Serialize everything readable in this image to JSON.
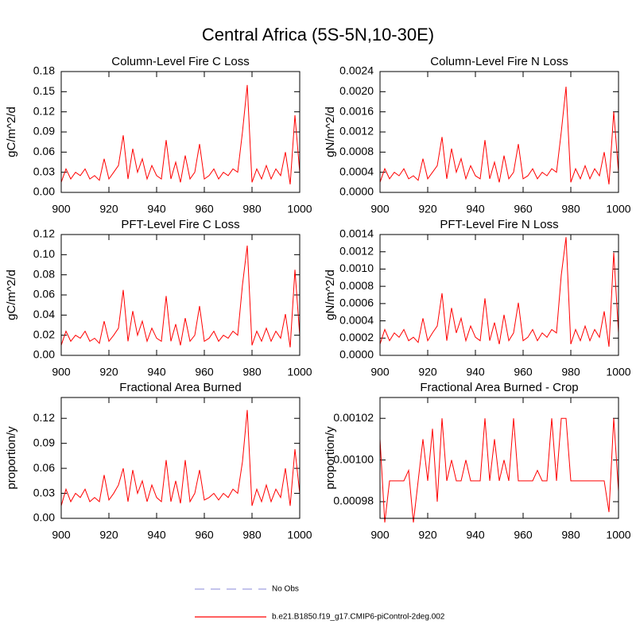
{
  "title": "Central Africa (5S-5N,10-30E)",
  "chart_data": [
    {
      "type": "line",
      "title": "Column-Level Fire C Loss",
      "ylabel": "gC/m^2/d",
      "x": [
        900,
        902,
        904,
        906,
        908,
        910,
        912,
        914,
        916,
        918,
        920,
        922,
        924,
        926,
        928,
        930,
        932,
        934,
        936,
        938,
        940,
        942,
        944,
        946,
        948,
        950,
        952,
        954,
        956,
        958,
        960,
        962,
        964,
        966,
        968,
        970,
        972,
        974,
        976,
        978,
        980,
        982,
        984,
        986,
        988,
        990,
        992,
        994,
        996,
        998,
        1000
      ],
      "series": [
        {
          "color": "#ff0000",
          "values": [
            0.015,
            0.035,
            0.02,
            0.03,
            0.025,
            0.035,
            0.02,
            0.025,
            0.018,
            0.05,
            0.02,
            0.03,
            0.04,
            0.085,
            0.02,
            0.065,
            0.03,
            0.05,
            0.02,
            0.04,
            0.025,
            0.02,
            0.078,
            0.02,
            0.045,
            0.015,
            0.055,
            0.02,
            0.03,
            0.072,
            0.02,
            0.025,
            0.035,
            0.02,
            0.03,
            0.025,
            0.035,
            0.03,
            0.09,
            0.16,
            0.015,
            0.035,
            0.02,
            0.04,
            0.02,
            0.035,
            0.025,
            0.06,
            0.012,
            0.115,
            0.03
          ]
        }
      ],
      "xlim": [
        900,
        1000
      ],
      "xticks": [
        900,
        920,
        940,
        960,
        980,
        1000
      ],
      "ylim": [
        0,
        0.18
      ],
      "yticks": [
        {
          "value": 0,
          "label": "0.00"
        },
        0.03,
        0.06,
        0.09,
        0.12,
        0.15,
        0.18
      ]
    },
    {
      "type": "line",
      "title": "Column-Level Fire N Loss",
      "ylabel": "gN/m^2/d",
      "x": [
        900,
        902,
        904,
        906,
        908,
        910,
        912,
        914,
        916,
        918,
        920,
        922,
        924,
        926,
        928,
        930,
        932,
        934,
        936,
        938,
        940,
        942,
        944,
        946,
        948,
        950,
        952,
        954,
        956,
        958,
        960,
        962,
        964,
        966,
        968,
        970,
        972,
        974,
        976,
        978,
        980,
        982,
        984,
        986,
        988,
        990,
        992,
        994,
        996,
        998,
        1000
      ],
      "series": [
        {
          "color": "#ff0000",
          "values": [
            0.0002,
            0.00047,
            0.00027,
            0.0004,
            0.00033,
            0.00047,
            0.00027,
            0.00033,
            0.00024,
            0.00067,
            0.00027,
            0.0004,
            0.00053,
            0.0011,
            0.00027,
            0.00087,
            0.0004,
            0.00067,
            0.00027,
            0.00053,
            0.00033,
            0.00027,
            0.00104,
            0.00027,
            0.0006,
            0.0002,
            0.00073,
            0.00027,
            0.0004,
            0.00096,
            0.00027,
            0.00033,
            0.00047,
            0.00027,
            0.0004,
            0.00033,
            0.00047,
            0.0004,
            0.0012,
            0.0021,
            0.0002,
            0.00047,
            0.00027,
            0.00053,
            0.00027,
            0.00047,
            0.00033,
            0.0008,
            0.00016,
            0.0016,
            0.0004
          ]
        }
      ],
      "xlim": [
        900,
        1000
      ],
      "xticks": [
        900,
        920,
        940,
        960,
        980,
        1000
      ],
      "ylim": [
        0,
        0.0024
      ],
      "yticks": [
        {
          "value": 0,
          "label": "0.0000"
        },
        0.0004,
        0.0008,
        0.0012,
        0.0016,
        {
          "value": 0.002,
          "label": "0.0020"
        },
        0.0024
      ]
    },
    {
      "type": "line",
      "title": "PFT-Level Fire C Loss",
      "ylabel": "gC/m^2/d",
      "x": [
        900,
        902,
        904,
        906,
        908,
        910,
        912,
        914,
        916,
        918,
        920,
        922,
        924,
        926,
        928,
        930,
        932,
        934,
        936,
        938,
        940,
        942,
        944,
        946,
        948,
        950,
        952,
        954,
        956,
        958,
        960,
        962,
        964,
        966,
        968,
        970,
        972,
        974,
        976,
        978,
        980,
        982,
        984,
        986,
        988,
        990,
        992,
        994,
        996,
        998,
        1000
      ],
      "series": [
        {
          "color": "#ff0000",
          "values": [
            0.01,
            0.024,
            0.014,
            0.02,
            0.017,
            0.024,
            0.014,
            0.017,
            0.012,
            0.034,
            0.014,
            0.02,
            0.027,
            0.065,
            0.014,
            0.044,
            0.02,
            0.034,
            0.014,
            0.027,
            0.017,
            0.014,
            0.059,
            0.014,
            0.031,
            0.01,
            0.037,
            0.014,
            0.02,
            0.049,
            0.014,
            0.017,
            0.024,
            0.014,
            0.02,
            0.017,
            0.024,
            0.02,
            0.07,
            0.109,
            0.01,
            0.024,
            0.014,
            0.027,
            0.014,
            0.024,
            0.017,
            0.041,
            0.008,
            0.085,
            0.02
          ]
        }
      ],
      "xlim": [
        900,
        1000
      ],
      "xticks": [
        900,
        920,
        940,
        960,
        980,
        1000
      ],
      "ylim": [
        0,
        0.12
      ],
      "yticks": [
        {
          "value": 0,
          "label": "0.00"
        },
        0.02,
        0.04,
        0.06,
        0.08,
        {
          "value": 0.1,
          "label": "0.10"
        },
        0.12
      ]
    },
    {
      "type": "line",
      "title": "PFT-Level Fire N Loss",
      "ylabel": "gN/m^2/d",
      "x": [
        900,
        902,
        904,
        906,
        908,
        910,
        912,
        914,
        916,
        918,
        920,
        922,
        924,
        926,
        928,
        930,
        932,
        934,
        936,
        938,
        940,
        942,
        944,
        946,
        948,
        950,
        952,
        954,
        956,
        958,
        960,
        962,
        964,
        966,
        968,
        970,
        972,
        974,
        976,
        978,
        980,
        982,
        984,
        986,
        988,
        990,
        992,
        994,
        996,
        998,
        1000
      ],
      "series": [
        {
          "color": "#ff0000",
          "values": [
            0.00013,
            0.0003,
            0.00017,
            0.00026,
            0.00021,
            0.0003,
            0.00017,
            0.00021,
            0.00015,
            0.00043,
            0.00017,
            0.00026,
            0.00034,
            0.00072,
            0.00017,
            0.00055,
            0.00026,
            0.00043,
            0.00017,
            0.00034,
            0.00021,
            0.00017,
            0.00066,
            0.00017,
            0.00038,
            0.00013,
            0.00047,
            0.00017,
            0.00026,
            0.00061,
            0.00017,
            0.00021,
            0.0003,
            0.00017,
            0.00026,
            0.00021,
            0.0003,
            0.00026,
            0.00093,
            0.00137,
            0.00013,
            0.0003,
            0.00017,
            0.00034,
            0.00017,
            0.0003,
            0.00021,
            0.00051,
            0.0001,
            0.00119,
            0.00026
          ]
        }
      ],
      "xlim": [
        900,
        1000
      ],
      "xticks": [
        900,
        920,
        940,
        960,
        980,
        1000
      ],
      "ylim": [
        0,
        0.0014
      ],
      "yticks": [
        {
          "value": 0,
          "label": "0.0000"
        },
        0.0002,
        0.0004,
        0.0006,
        0.0008,
        {
          "value": 0.001,
          "label": "0.0010"
        },
        0.0012,
        0.0014
      ]
    },
    {
      "type": "line",
      "title": "Fractional Area Burned",
      "ylabel": "proportion/y",
      "x": [
        900,
        902,
        904,
        906,
        908,
        910,
        912,
        914,
        916,
        918,
        920,
        922,
        924,
        926,
        928,
        930,
        932,
        934,
        936,
        938,
        940,
        942,
        944,
        946,
        948,
        950,
        952,
        954,
        956,
        958,
        960,
        962,
        964,
        966,
        968,
        970,
        972,
        974,
        976,
        978,
        980,
        982,
        984,
        986,
        988,
        990,
        992,
        994,
        996,
        998,
        1000
      ],
      "series": [
        {
          "color": "#ff0000",
          "values": [
            0.015,
            0.035,
            0.02,
            0.03,
            0.025,
            0.035,
            0.02,
            0.025,
            0.02,
            0.052,
            0.022,
            0.03,
            0.04,
            0.06,
            0.02,
            0.058,
            0.03,
            0.045,
            0.02,
            0.04,
            0.025,
            0.02,
            0.07,
            0.02,
            0.045,
            0.018,
            0.07,
            0.02,
            0.03,
            0.058,
            0.022,
            0.025,
            0.03,
            0.022,
            0.03,
            0.025,
            0.035,
            0.03,
            0.068,
            0.13,
            0.015,
            0.035,
            0.02,
            0.04,
            0.02,
            0.035,
            0.025,
            0.06,
            0.015,
            0.083,
            0.03
          ]
        }
      ],
      "xlim": [
        900,
        1000
      ],
      "xticks": [
        900,
        920,
        940,
        960,
        980,
        1000
      ],
      "ylim": [
        0,
        0.145
      ],
      "yticks": [
        {
          "value": 0,
          "label": "0.00"
        },
        0.03,
        0.06,
        0.09,
        0.12
      ]
    },
    {
      "type": "line",
      "title": "Fractional Area Burned - Crop",
      "ylabel": "proportion/y",
      "x": [
        900,
        902,
        904,
        906,
        908,
        910,
        912,
        914,
        916,
        918,
        920,
        922,
        924,
        926,
        928,
        930,
        932,
        934,
        936,
        938,
        940,
        942,
        944,
        946,
        948,
        950,
        952,
        954,
        956,
        958,
        960,
        962,
        964,
        966,
        968,
        970,
        972,
        974,
        976,
        978,
        980,
        982,
        984,
        986,
        988,
        990,
        992,
        994,
        996,
        998,
        1000
      ],
      "series": [
        {
          "color": "#ff0000",
          "values": [
            0.00101,
            0.00097,
            0.00099,
            0.00099,
            0.00099,
            0.00099,
            0.000995,
            0.00097,
            0.00099,
            0.00101,
            0.00099,
            0.001015,
            0.00098,
            0.00102,
            0.00099,
            0.001,
            0.00099,
            0.00099,
            0.001,
            0.00099,
            0.00099,
            0.00099,
            0.00102,
            0.00099,
            0.00101,
            0.00099,
            0.001,
            0.00099,
            0.00102,
            0.00099,
            0.00099,
            0.00099,
            0.00099,
            0.000995,
            0.00099,
            0.00099,
            0.00102,
            0.00099,
            0.00102,
            0.00102,
            0.00099,
            0.00099,
            0.00099,
            0.00099,
            0.00099,
            0.00099,
            0.00099,
            0.00099,
            0.000975,
            0.00102,
            0.000985
          ]
        }
      ],
      "xlim": [
        900,
        1000
      ],
      "xticks": [
        900,
        920,
        940,
        960,
        980,
        1000
      ],
      "ylim": [
        0.000972,
        0.00103
      ],
      "yticks": [
        0.00098,
        {
          "value": 0.001,
          "label": "0.00100"
        },
        0.00102
      ]
    }
  ],
  "legend": [
    {
      "name": "No Obs",
      "color": "#a0a0e0",
      "dash": true
    },
    {
      "name": "b.e21.B1850.f19_g17.CMIP6-piControl-2deg.002",
      "color": "#ff0000",
      "dash": false
    }
  ]
}
